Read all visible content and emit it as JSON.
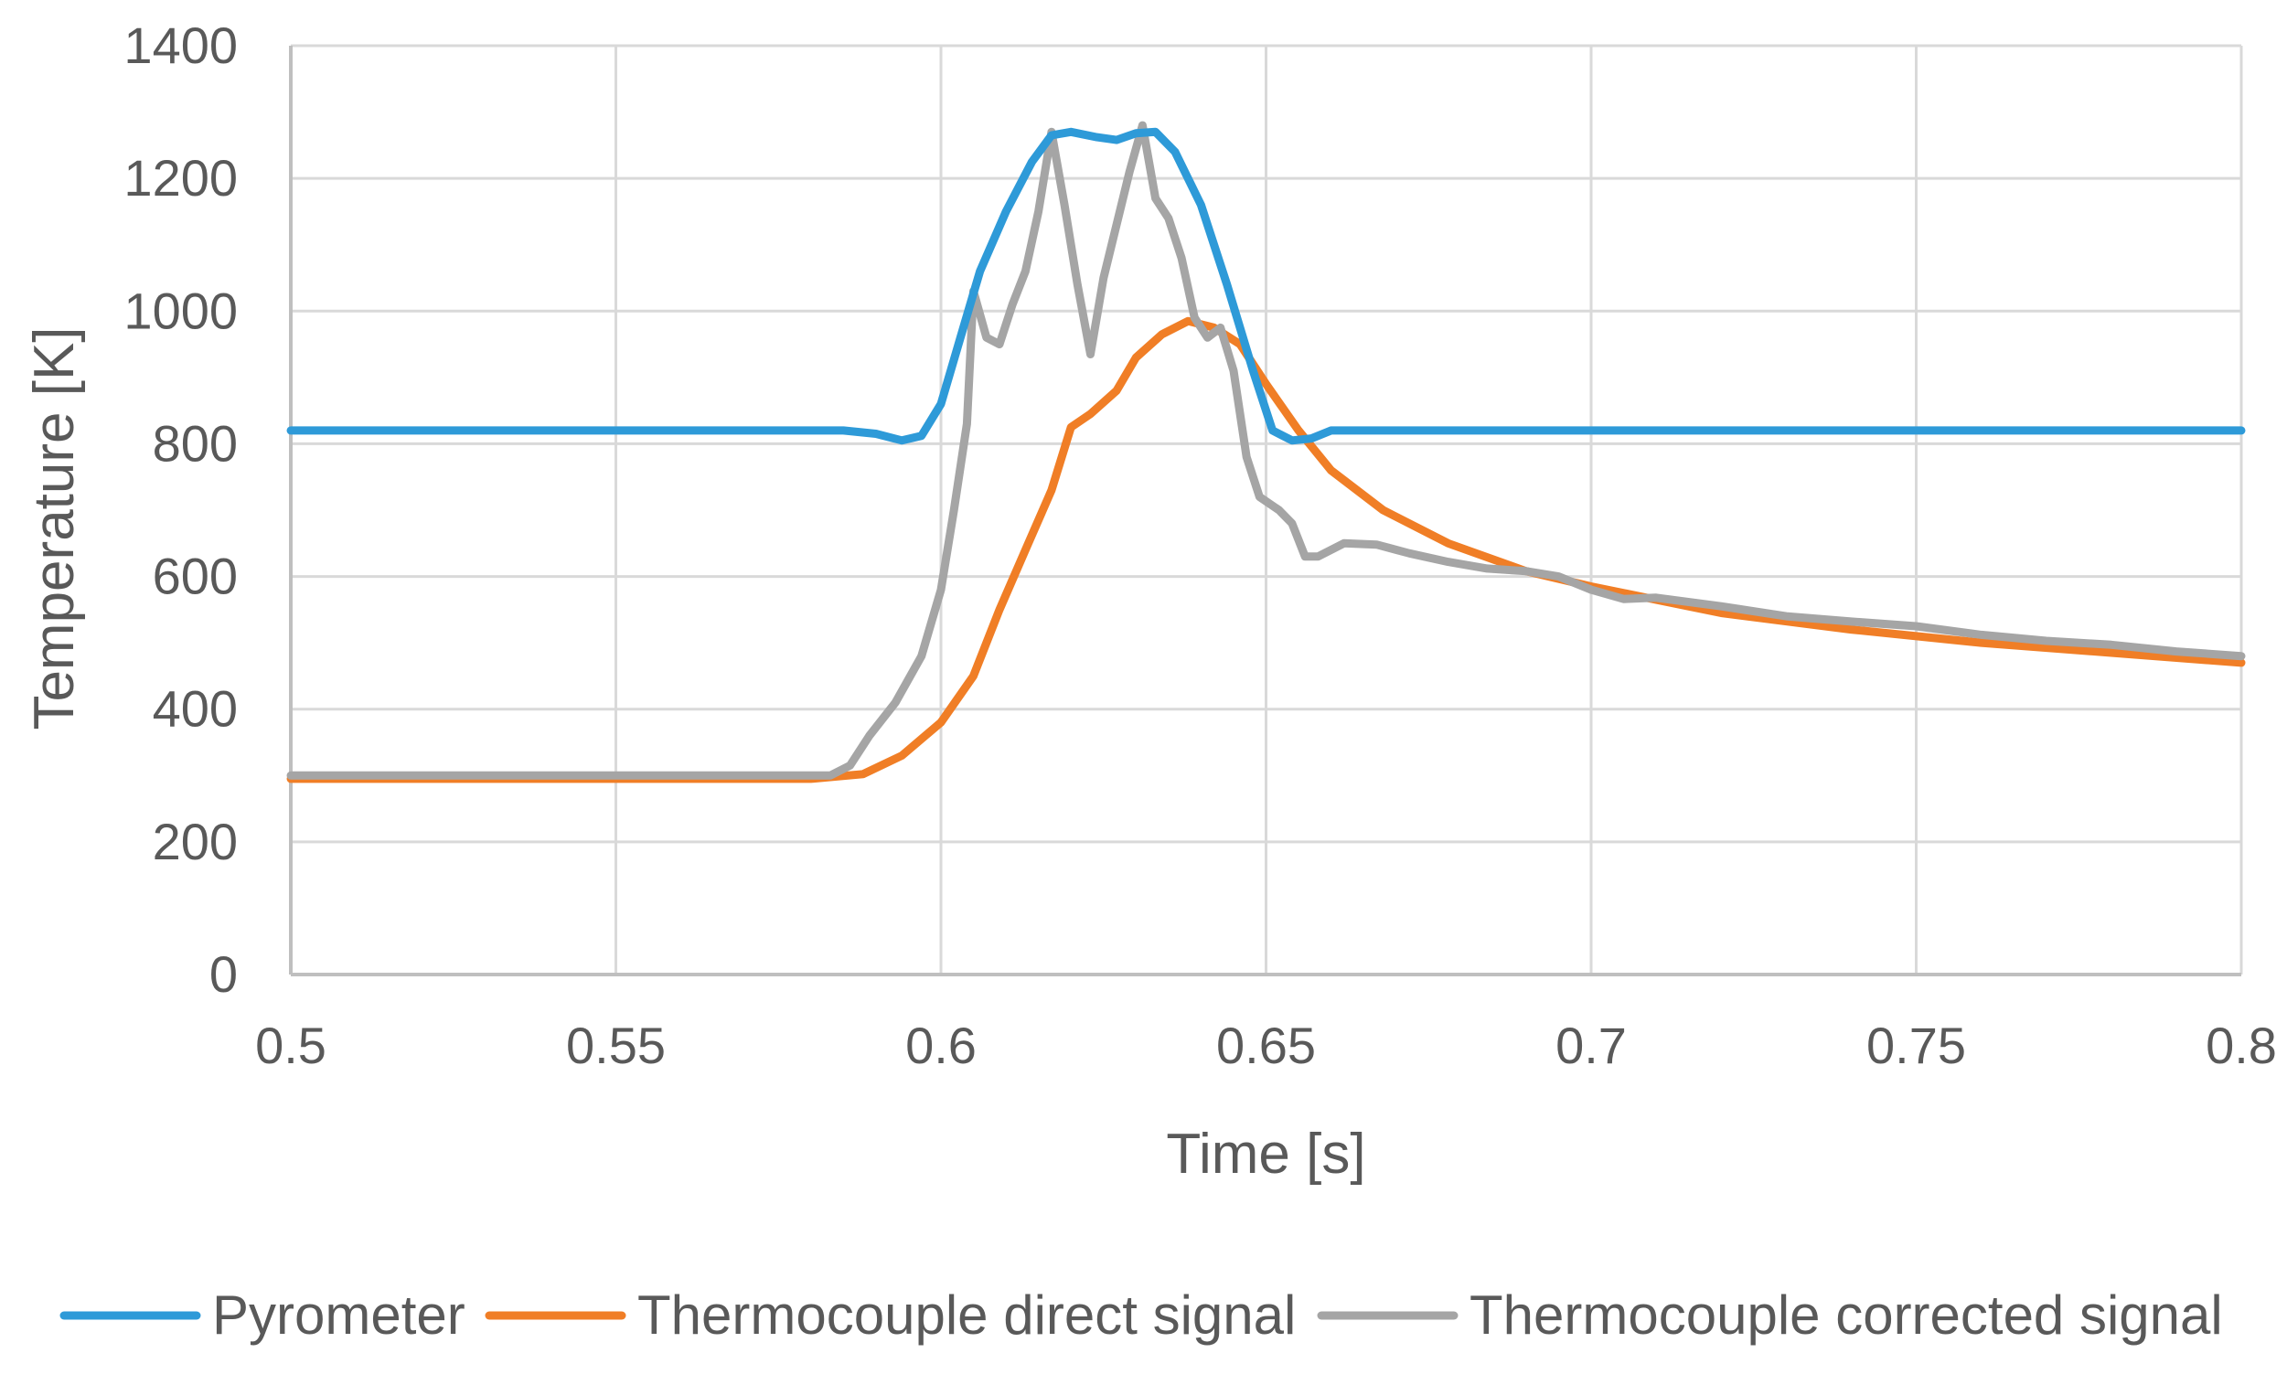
{
  "chart_data": {
    "type": "line",
    "title": "",
    "xlabel": "Time [s]",
    "ylabel": "Temperature [K]",
    "xlim": [
      0.5,
      0.8
    ],
    "ylim": [
      0,
      1400
    ],
    "xticks": [
      0.5,
      0.55,
      0.6,
      0.65,
      0.7,
      0.75,
      0.8
    ],
    "xtick_labels": [
      "0.5",
      "0.55",
      "0.6",
      "0.65",
      "0.7",
      "0.75",
      "0.8"
    ],
    "yticks": [
      0,
      200,
      400,
      600,
      800,
      1000,
      1200,
      1400
    ],
    "ytick_labels": [
      "0",
      "200",
      "400",
      "600",
      "800",
      "1000",
      "1200",
      "1400"
    ],
    "grid": true,
    "legend_position": "bottom",
    "series": [
      {
        "name": "Pyrometer",
        "color": "#2E9AD8",
        "points": [
          [
            0.5,
            820
          ],
          [
            0.585,
            820
          ],
          [
            0.59,
            815
          ],
          [
            0.594,
            805
          ],
          [
            0.597,
            812
          ],
          [
            0.6,
            860
          ],
          [
            0.603,
            960
          ],
          [
            0.606,
            1060
          ],
          [
            0.61,
            1150
          ],
          [
            0.614,
            1225
          ],
          [
            0.617,
            1265
          ],
          [
            0.62,
            1270
          ],
          [
            0.624,
            1262
          ],
          [
            0.627,
            1258
          ],
          [
            0.63,
            1268
          ],
          [
            0.633,
            1270
          ],
          [
            0.636,
            1240
          ],
          [
            0.64,
            1160
          ],
          [
            0.644,
            1040
          ],
          [
            0.648,
            910
          ],
          [
            0.651,
            820
          ],
          [
            0.654,
            805
          ],
          [
            0.657,
            808
          ],
          [
            0.66,
            820
          ],
          [
            0.8,
            820
          ]
        ]
      },
      {
        "name": "Thermocouple direct signal",
        "color": "#F07E26",
        "points": [
          [
            0.5,
            295
          ],
          [
            0.58,
            295
          ],
          [
            0.588,
            302
          ],
          [
            0.594,
            330
          ],
          [
            0.6,
            380
          ],
          [
            0.605,
            450
          ],
          [
            0.609,
            550
          ],
          [
            0.613,
            640
          ],
          [
            0.617,
            730
          ],
          [
            0.62,
            825
          ],
          [
            0.623,
            845
          ],
          [
            0.627,
            880
          ],
          [
            0.63,
            930
          ],
          [
            0.634,
            965
          ],
          [
            0.638,
            985
          ],
          [
            0.642,
            975
          ],
          [
            0.646,
            950
          ],
          [
            0.65,
            890
          ],
          [
            0.655,
            820
          ],
          [
            0.66,
            760
          ],
          [
            0.668,
            700
          ],
          [
            0.678,
            650
          ],
          [
            0.69,
            608
          ],
          [
            0.7,
            585
          ],
          [
            0.72,
            545
          ],
          [
            0.74,
            520
          ],
          [
            0.76,
            500
          ],
          [
            0.78,
            485
          ],
          [
            0.8,
            470
          ]
        ]
      },
      {
        "name": "Thermocouple corrected signal",
        "color": "#A5A5A5",
        "points": [
          [
            0.5,
            300
          ],
          [
            0.583,
            300
          ],
          [
            0.586,
            315
          ],
          [
            0.589,
            360
          ],
          [
            0.593,
            410
          ],
          [
            0.597,
            480
          ],
          [
            0.6,
            580
          ],
          [
            0.602,
            700
          ],
          [
            0.604,
            830
          ],
          [
            0.605,
            1030
          ],
          [
            0.607,
            960
          ],
          [
            0.609,
            950
          ],
          [
            0.611,
            1010
          ],
          [
            0.613,
            1060
          ],
          [
            0.615,
            1150
          ],
          [
            0.617,
            1270
          ],
          [
            0.619,
            1160
          ],
          [
            0.621,
            1040
          ],
          [
            0.623,
            935
          ],
          [
            0.625,
            1050
          ],
          [
            0.627,
            1130
          ],
          [
            0.629,
            1210
          ],
          [
            0.631,
            1280
          ],
          [
            0.633,
            1170
          ],
          [
            0.635,
            1140
          ],
          [
            0.637,
            1080
          ],
          [
            0.639,
            990
          ],
          [
            0.641,
            960
          ],
          [
            0.643,
            975
          ],
          [
            0.645,
            910
          ],
          [
            0.647,
            780
          ],
          [
            0.649,
            720
          ],
          [
            0.652,
            700
          ],
          [
            0.654,
            680
          ],
          [
            0.656,
            630
          ],
          [
            0.658,
            630
          ],
          [
            0.662,
            650
          ],
          [
            0.667,
            648
          ],
          [
            0.672,
            635
          ],
          [
            0.678,
            622
          ],
          [
            0.684,
            612
          ],
          [
            0.69,
            608
          ],
          [
            0.695,
            600
          ],
          [
            0.7,
            580
          ],
          [
            0.705,
            566
          ],
          [
            0.71,
            568
          ],
          [
            0.72,
            555
          ],
          [
            0.73,
            540
          ],
          [
            0.74,
            532
          ],
          [
            0.75,
            525
          ],
          [
            0.76,
            512
          ],
          [
            0.77,
            503
          ],
          [
            0.78,
            497
          ],
          [
            0.79,
            487
          ],
          [
            0.8,
            480
          ]
        ]
      }
    ]
  }
}
